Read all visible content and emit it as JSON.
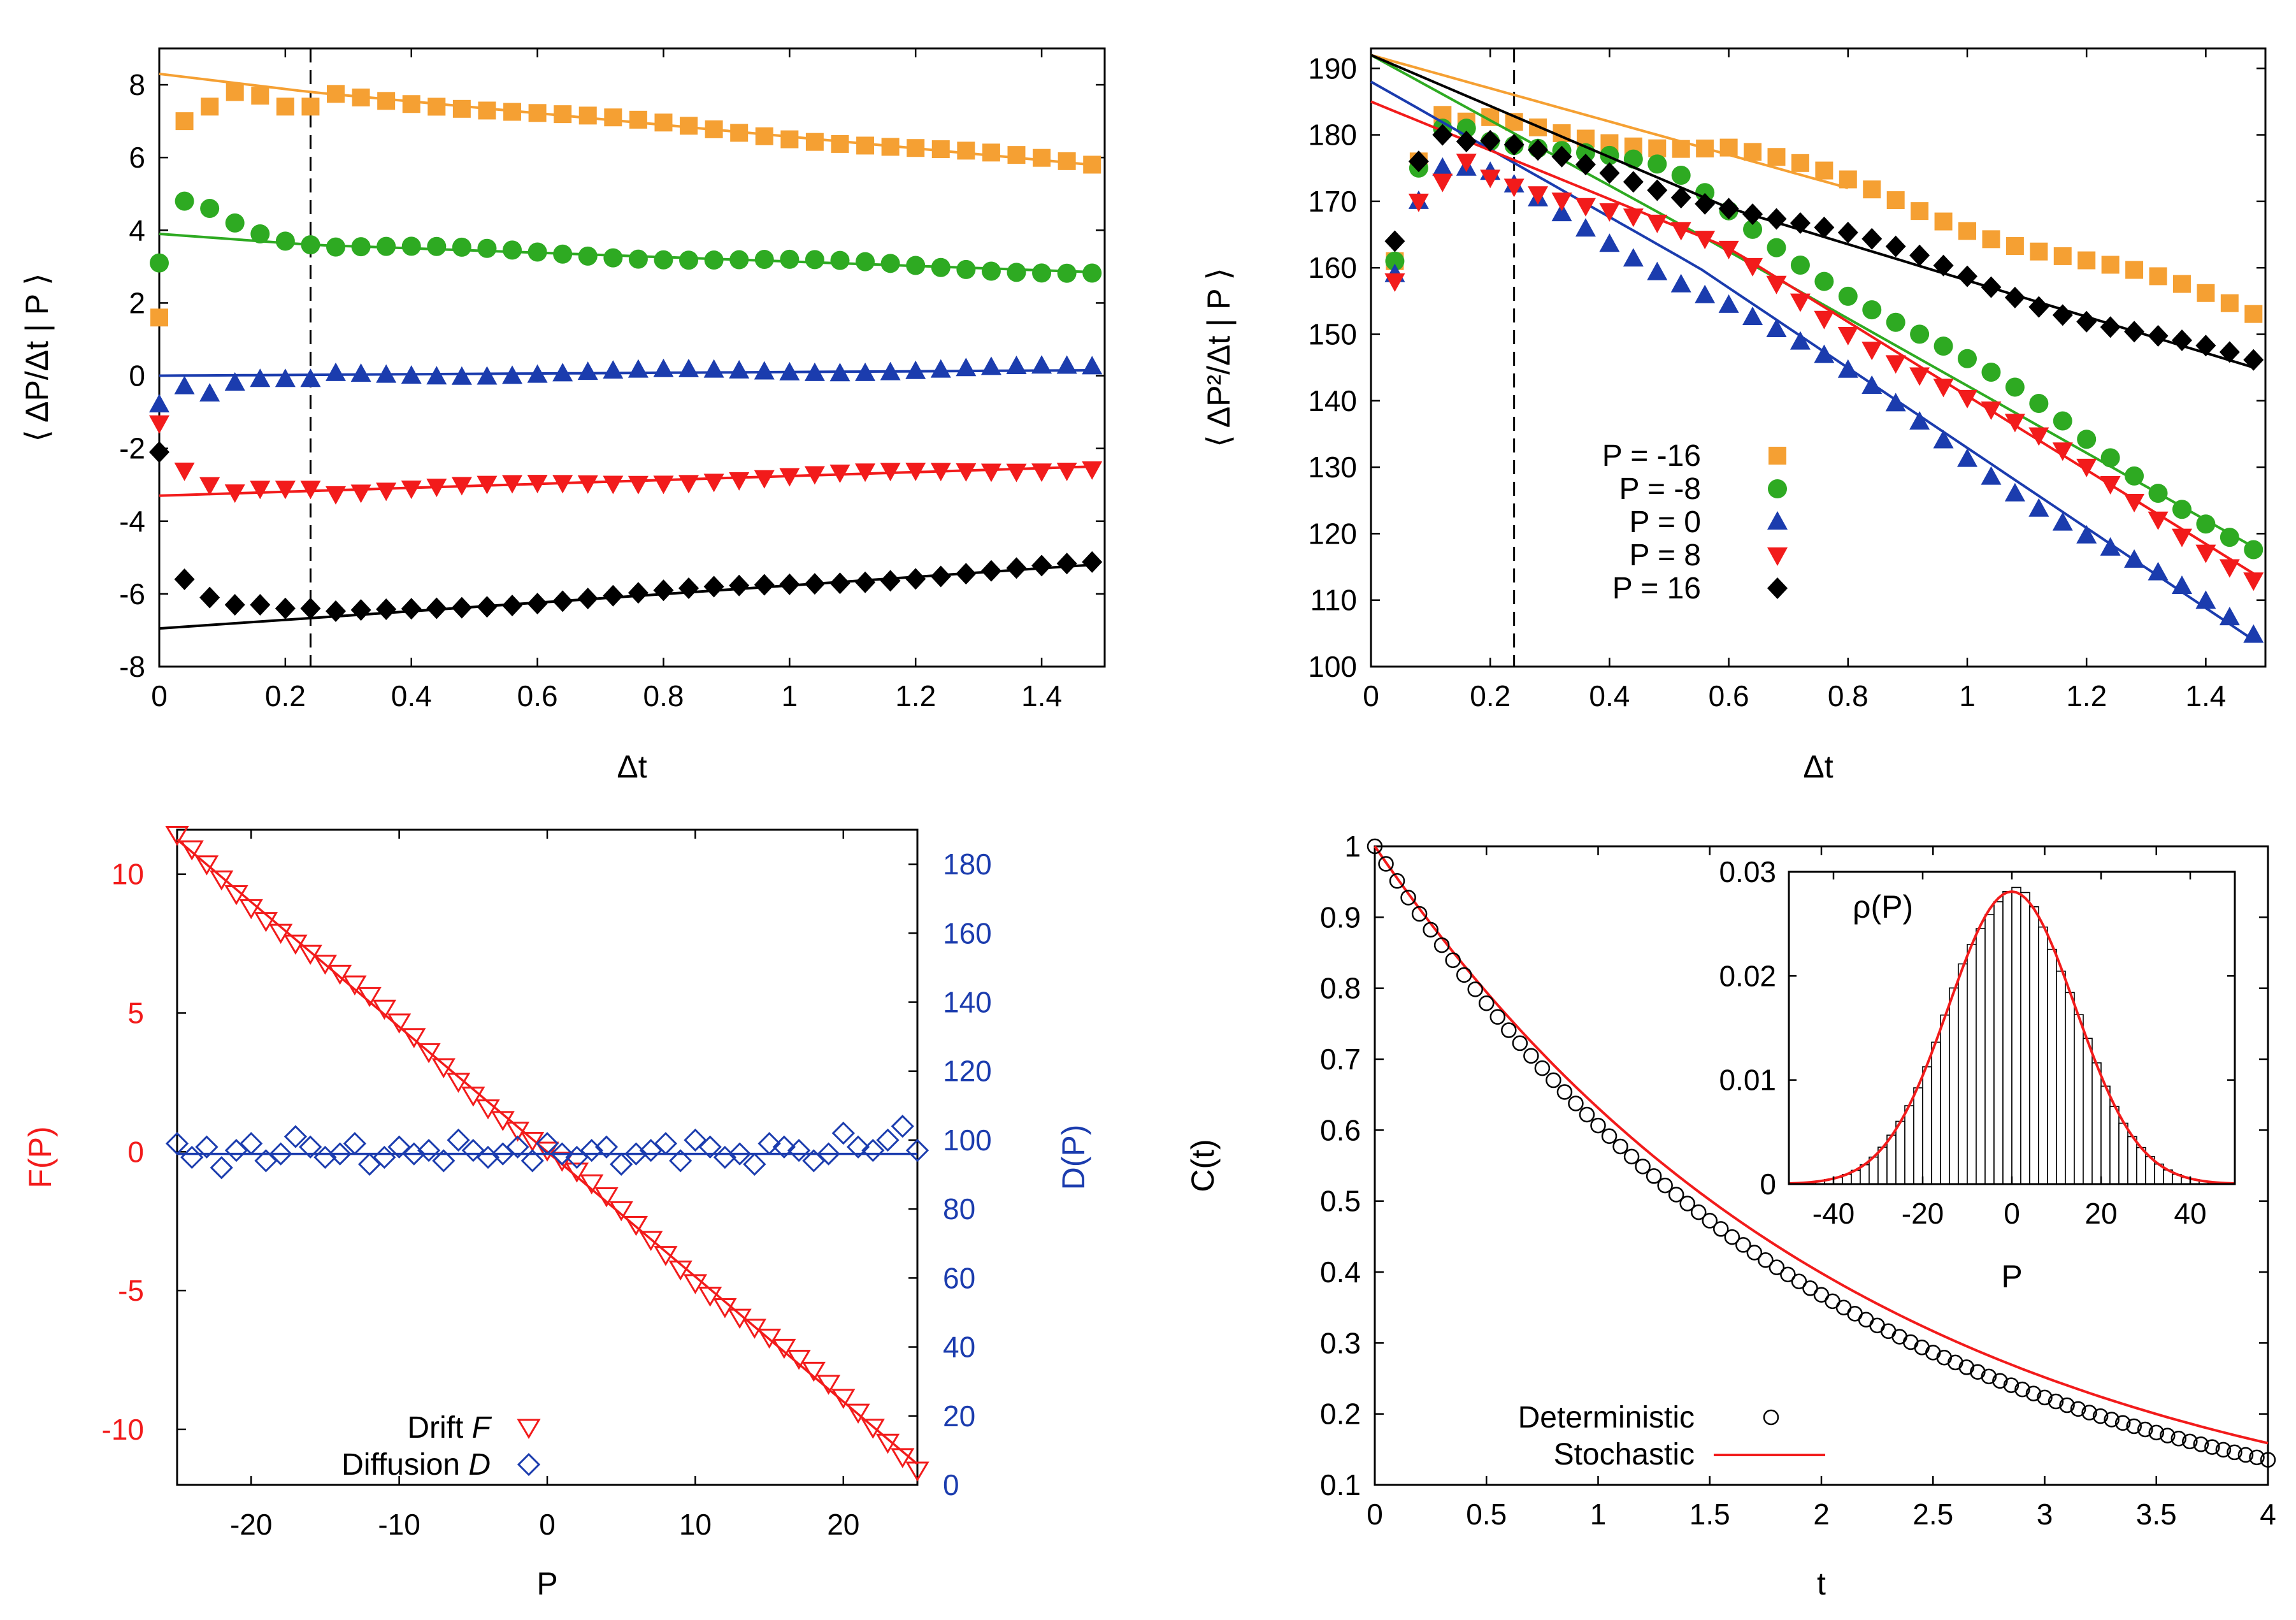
{
  "chart_data": [
    {
      "id": "a",
      "type": "scatter",
      "xlabel": "Δt",
      "ylabel": "⟨ ΔP/Δt | P ⟩",
      "xlim": [
        0,
        1.5
      ],
      "ylim": [
        -8,
        9
      ],
      "xticks": [
        "0",
        "0.2",
        "0.4",
        "0.6",
        "0.8",
        "1",
        "1.2",
        "1.4"
      ],
      "yticks": [
        "-8",
        "-6",
        "-4",
        "-2",
        "0",
        "2",
        "4",
        "6",
        "8"
      ],
      "vline": 0.24,
      "series": [
        {
          "name": "P = -16",
          "color": "#f5a033",
          "marker": "square",
          "start": [
            1.6,
            7.0,
            7.4,
            7.8,
            7.7,
            7.4,
            7.4
          ],
          "trend": [
            [
              0.0,
              8.3
            ],
            [
              0.24,
              7.8
            ],
            [
              1.48,
              5.8
            ]
          ],
          "fit": [
            [
              0.0,
              8.3
            ],
            [
              0.24,
              7.8
            ]
          ]
        },
        {
          "name": "P = -8",
          "color": "#2eaa22",
          "marker": "circle",
          "start": [
            3.1,
            4.8,
            4.6,
            4.2,
            3.9,
            3.7,
            3.6
          ],
          "trend": [
            [
              0.0,
              3.9
            ],
            [
              0.24,
              3.6
            ],
            [
              1.48,
              2.85
            ]
          ],
          "fit": [
            [
              0.0,
              3.9
            ],
            [
              0.24,
              3.65
            ]
          ]
        },
        {
          "name": "P = 0",
          "color": "#1b3cae",
          "marker": "triangle-up",
          "start": [
            -0.8,
            -0.3,
            -0.5,
            -0.2,
            -0.1,
            -0.1,
            -0.1
          ],
          "trend": [
            [
              0.0,
              0.0
            ],
            [
              0.24,
              0.0
            ],
            [
              1.48,
              0.2
            ]
          ],
          "fit": [
            [
              0.0,
              0.0
            ],
            [
              1.48,
              0.15
            ]
          ]
        },
        {
          "name": "P = 8",
          "color": "#f21b1b",
          "marker": "triangle-down",
          "start": [
            -1.3,
            -2.6,
            -3.0,
            -3.2,
            -3.1,
            -3.1,
            -3.1
          ],
          "trend": [
            [
              0.0,
              -3.3
            ],
            [
              0.24,
              -3.2
            ],
            [
              1.48,
              -2.5
            ]
          ],
          "fit": [
            [
              0.0,
              -3.3
            ],
            [
              1.48,
              -2.5
            ]
          ]
        },
        {
          "name": "P = 16",
          "color": "#000000",
          "marker": "diamond",
          "start": [
            -2.1,
            -5.6,
            -6.1,
            -6.3,
            -6.3,
            -6.4,
            -6.4
          ],
          "trend": [
            [
              0.0,
              -6.9
            ],
            [
              0.24,
              -6.6
            ],
            [
              1.48,
              -5.2
            ]
          ],
          "fit": [
            [
              0.0,
              -6.95
            ],
            [
              1.48,
              -5.2
            ]
          ]
        }
      ]
    },
    {
      "id": "b",
      "type": "scatter",
      "xlabel": "Δt",
      "ylabel": "⟨ ΔP²/Δt | P ⟩",
      "xlim": [
        0,
        1.5
      ],
      "ylim": [
        100,
        193
      ],
      "xticks": [
        "0",
        "0.2",
        "0.4",
        "0.6",
        "0.8",
        "1",
        "1.2",
        "1.4"
      ],
      "yticks": [
        "100",
        "110",
        "120",
        "130",
        "140",
        "150",
        "160",
        "170",
        "180",
        "190"
      ],
      "vline": 0.24,
      "legend_position": "lower-left",
      "series": [
        {
          "name": "P = -16",
          "color": "#f5a033",
          "marker": "square",
          "start": [
            161,
            176,
            183,
            182
          ],
          "trend": [
            [
              0.16,
              182
            ],
            [
              0.6,
              178
            ],
            [
              1.48,
              153
            ]
          ],
          "fit": [
            [
              0.0,
              192
            ],
            [
              0.8,
              172
            ]
          ]
        },
        {
          "name": "P = -8",
          "color": "#2eaa22",
          "marker": "circle",
          "start": [
            161,
            175,
            181,
            181
          ],
          "trend": [
            [
              0.16,
              181
            ],
            [
              0.5,
              174
            ],
            [
              1.48,
              118
            ]
          ],
          "fit": [
            [
              0.0,
              192
            ],
            [
              0.55,
              165
            ],
            [
              1.48,
              118
            ]
          ]
        },
        {
          "name": "P = 0",
          "color": "#1b3cae",
          "marker": "triangle-up",
          "start": [
            159,
            170,
            175,
            175
          ],
          "trend": [
            [
              0.16,
              175
            ],
            [
              0.6,
              155
            ],
            [
              1.48,
              104
            ]
          ],
          "fit": [
            [
              0.0,
              188
            ],
            [
              0.55,
              160
            ],
            [
              1.48,
              104
            ]
          ]
        },
        {
          "name": "P = 8",
          "color": "#f21b1b",
          "marker": "triangle-down",
          "start": [
            158,
            170,
            173,
            176
          ],
          "trend": [
            [
              0.16,
              176
            ],
            [
              0.6,
              162
            ],
            [
              1.48,
              114
            ]
          ],
          "fit": [
            [
              0.0,
              185
            ],
            [
              0.6,
              163
            ],
            [
              1.48,
              114
            ]
          ]
        },
        {
          "name": "P = 16",
          "color": "#000000",
          "marker": "diamond",
          "start": [
            164,
            176,
            180,
            179
          ],
          "trend": [
            [
              0.16,
              179
            ],
            [
              0.6,
              170
            ],
            [
              1.48,
              145
            ]
          ],
          "fit": [
            [
              0.0,
              192
            ],
            [
              0.6,
              169
            ],
            [
              1.48,
              145
            ]
          ]
        }
      ]
    },
    {
      "id": "c",
      "type": "scatter",
      "xlabel": "P",
      "ylabel": "F(P)",
      "ylabel_right": "D(P)",
      "xlim": [
        -25,
        25
      ],
      "ylim": [
        -12,
        11.6
      ],
      "ylim_right": [
        0,
        190
      ],
      "xticks": [
        "-20",
        "-10",
        "0",
        "10",
        "20"
      ],
      "yticks": [
        "-10",
        "-5",
        "0",
        "5",
        "10"
      ],
      "yticks_right": [
        "0",
        "20",
        "40",
        "60",
        "80",
        "100",
        "120",
        "140",
        "160",
        "180"
      ],
      "legend": [
        {
          "label": "Drift ",
          "symbol": "F",
          "color": "#f21b1b"
        },
        {
          "label": "Diffusion ",
          "symbol": "D",
          "color": "#1b3cae"
        }
      ],
      "drift": {
        "slope": -0.45,
        "intercept": 0,
        "color": "#f21b1b"
      },
      "diffusion": {
        "mean": 96,
        "noise": [
          3,
          -1,
          2,
          -4,
          1,
          3,
          -2,
          0,
          5,
          2,
          -1,
          0,
          3,
          -3,
          -1,
          2,
          0,
          1,
          -2,
          4,
          1,
          -1,
          0,
          2,
          -2,
          3,
          0,
          -1,
          1,
          2,
          -3,
          0,
          1,
          3,
          -2,
          4,
          2,
          -1,
          0,
          -3,
          3,
          2,
          1,
          -2,
          0,
          6,
          2,
          1,
          4,
          8,
          1
        ],
        "color": "#1b3cae"
      }
    },
    {
      "id": "d",
      "type": "line",
      "xlabel": "t",
      "ylabel": "C(t)",
      "xlim": [
        0,
        4
      ],
      "ylim": [
        0.1,
        1
      ],
      "xticks": [
        "0",
        "0.5",
        "1",
        "1.5",
        "2",
        "2.5",
        "3",
        "3.5",
        "4"
      ],
      "yticks": [
        "0.1",
        "0.2",
        "0.3",
        "0.4",
        "0.5",
        "0.6",
        "0.7",
        "0.8",
        "0.9",
        "1"
      ],
      "series": [
        {
          "name": "Deterministic",
          "marker": "open-circle",
          "decay_rate": 0.5,
          "color": "#000000"
        },
        {
          "name": "Stochastic",
          "marker": "line",
          "decay_rate": 0.46,
          "color": "#f21b1b"
        }
      ],
      "inset": {
        "title": "ρ(P)",
        "xlabel": "P",
        "xlim": [
          -50,
          50
        ],
        "ylim": [
          0,
          0.03
        ],
        "xticks": [
          "-40",
          "-20",
          "0",
          "20",
          "40"
        ],
        "yticks": [
          "0",
          "0.01",
          "0.02",
          "0.03"
        ],
        "gaussian": {
          "mean": 0,
          "sigma": 14.2,
          "amplitude": 0.0281
        },
        "bin_width": 2
      }
    }
  ]
}
